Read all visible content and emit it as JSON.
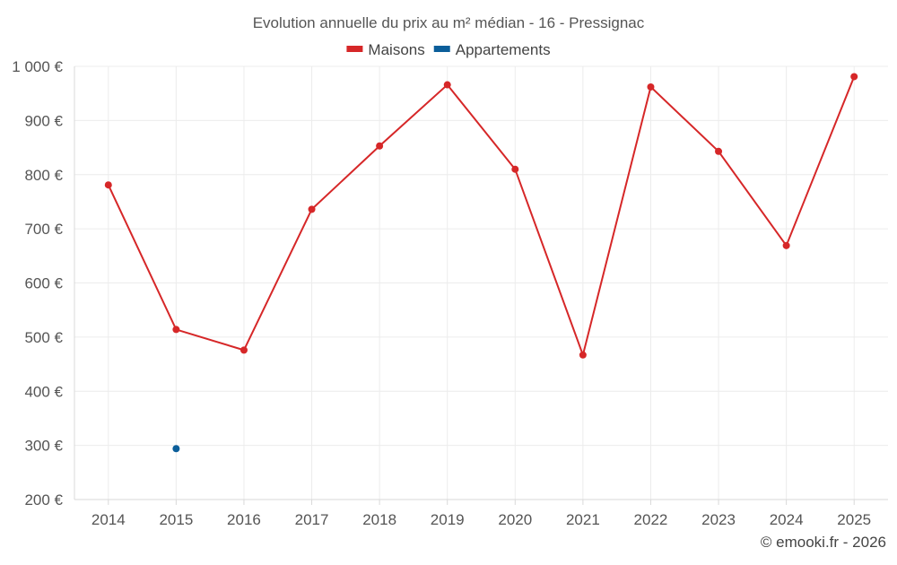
{
  "chart_data": {
    "type": "line",
    "title": "Evolution annuelle du prix au m² médian - 16 - Pressignac",
    "categories": [
      "2014",
      "2015",
      "2016",
      "2017",
      "2018",
      "2019",
      "2020",
      "2021",
      "2022",
      "2023",
      "2024",
      "2025"
    ],
    "series": [
      {
        "name": "Maisons",
        "color": "#d62728",
        "values": [
          781,
          514,
          476,
          736,
          853,
          966,
          810,
          467,
          962,
          843,
          669,
          981
        ]
      },
      {
        "name": "Appartements",
        "color": "#0b5e9a",
        "values": [
          null,
          294,
          null,
          null,
          null,
          null,
          null,
          null,
          null,
          null,
          null,
          null
        ]
      }
    ],
    "ylim": [
      200,
      1000
    ],
    "yticks": [
      200,
      300,
      400,
      500,
      600,
      700,
      800,
      900,
      1000
    ],
    "ytick_labels": [
      "200 €",
      "300 €",
      "400 €",
      "500 €",
      "600 €",
      "700 €",
      "800 €",
      "900 €",
      "1 000 €"
    ],
    "legend_position": "top-center",
    "grid": true
  },
  "credit": "© emooki.fr - 2026"
}
